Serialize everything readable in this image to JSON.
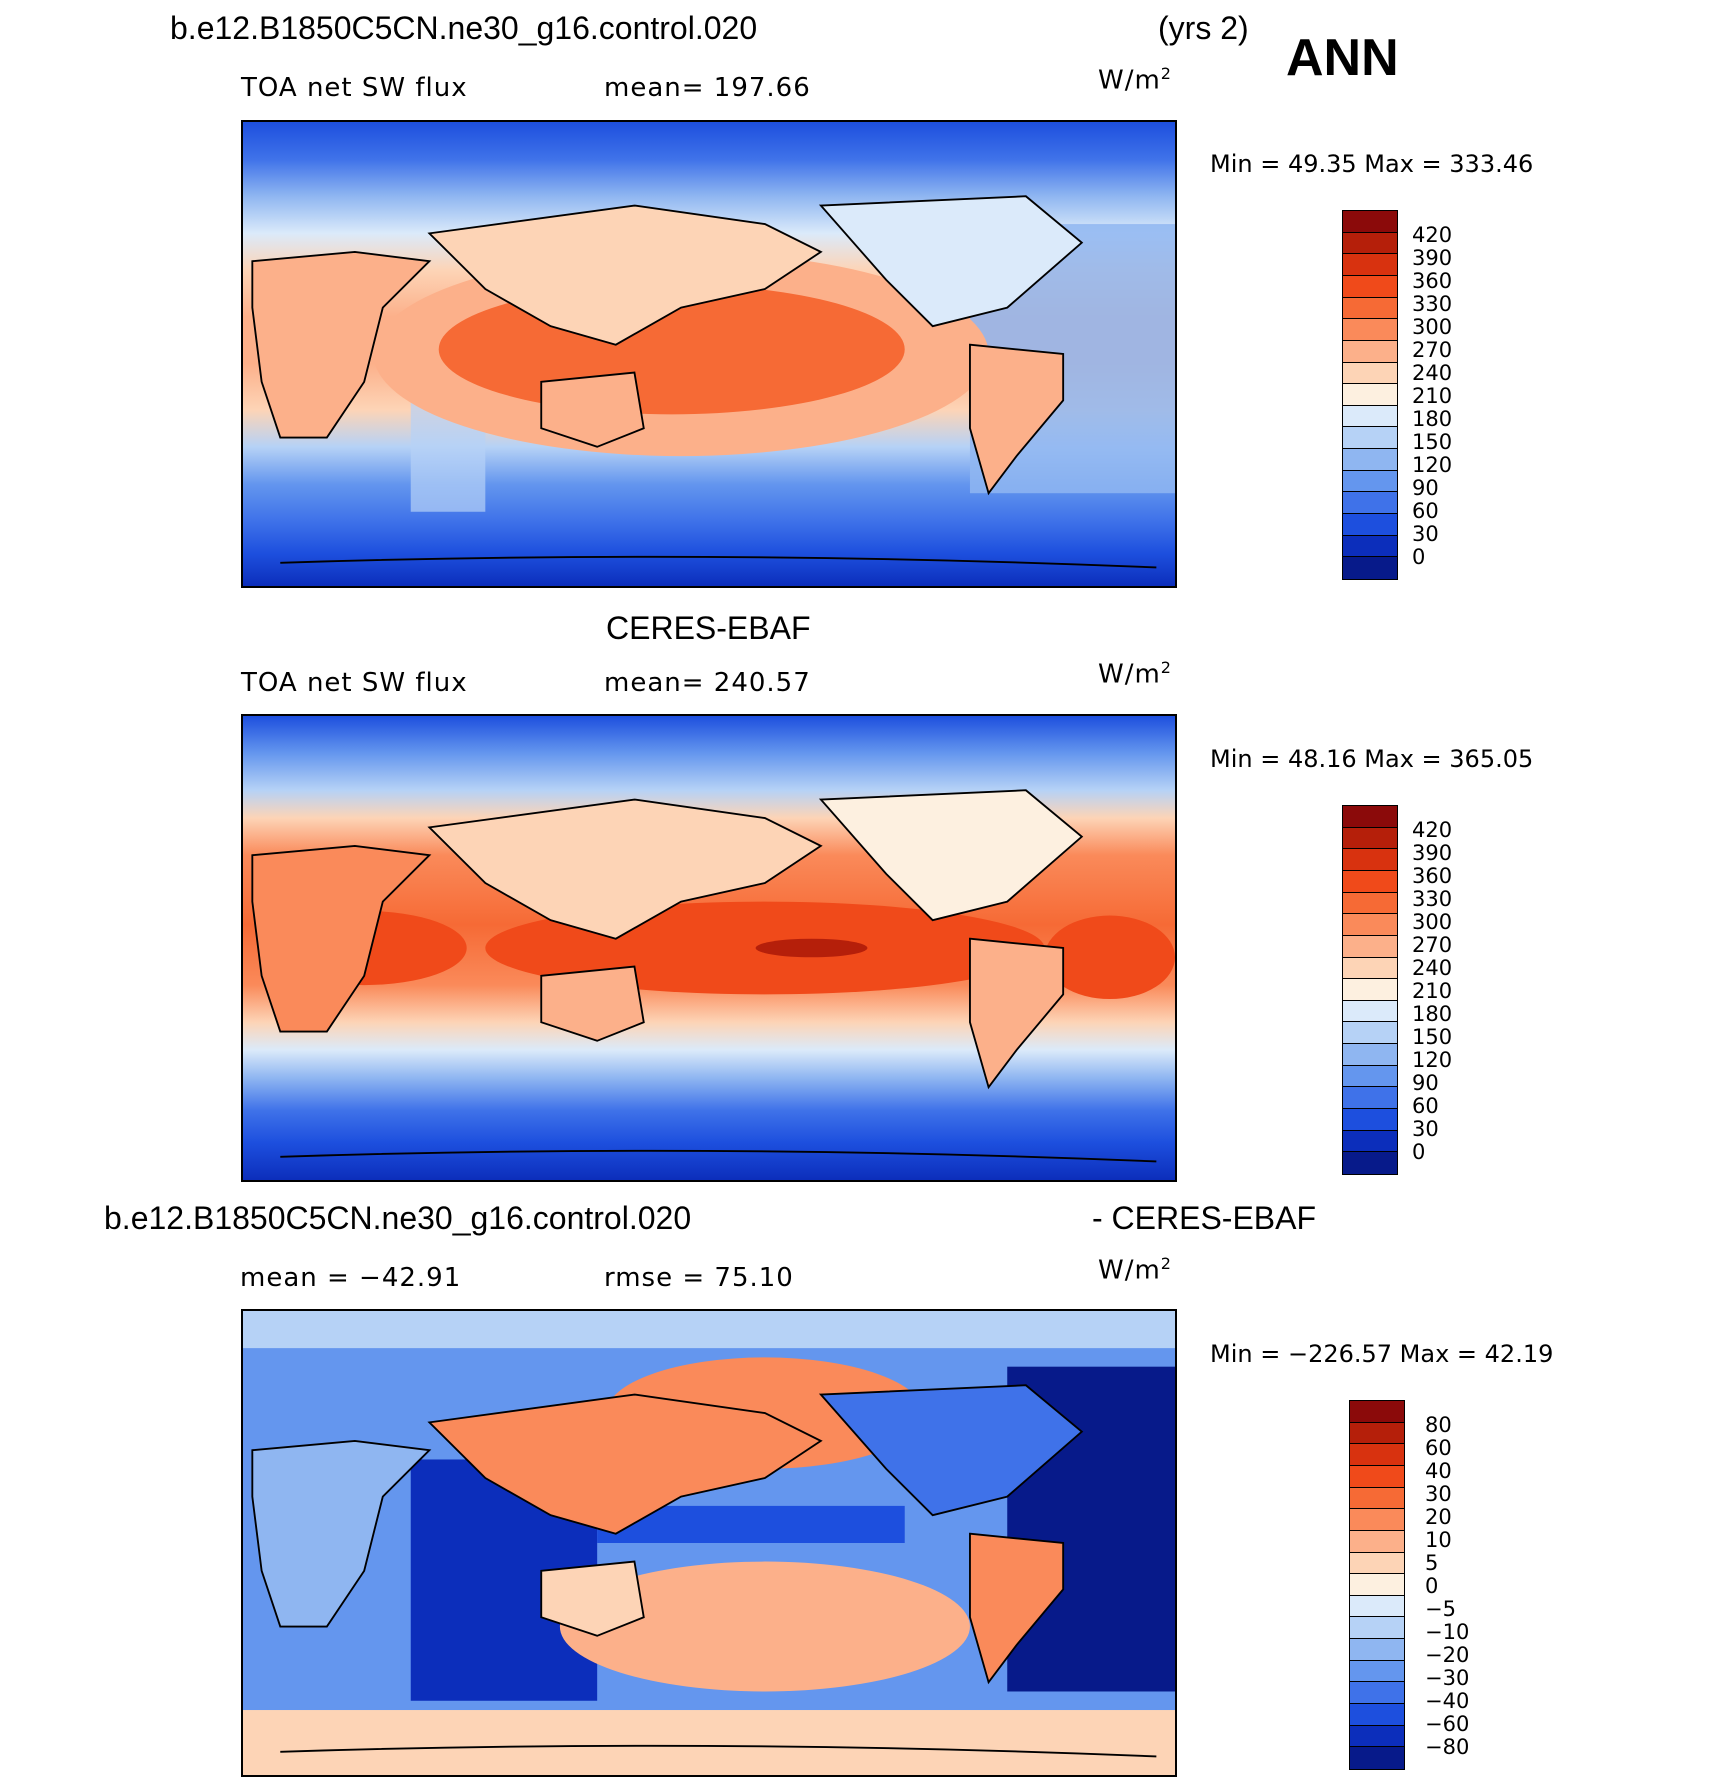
{
  "header": {
    "case_name": "b.e12.B1850C5CN.ne30_g16.control.020",
    "years": "(yrs 2)",
    "season": "ANN"
  },
  "panels": [
    {
      "id": "model",
      "title": "",
      "variable": "TOA net SW flux",
      "stat_label": "mean= 197.66",
      "units": "W/m",
      "units_sup": "2",
      "min_max": "Min =   49.35  Max =  333.46",
      "min": 49.35,
      "max": 333.46,
      "mean": 197.66
    },
    {
      "id": "obs",
      "title": "CERES-EBAF",
      "variable": "TOA net SW flux",
      "stat_label": "mean= 240.57",
      "units": "W/m",
      "units_sup": "2",
      "min_max": "Min =   48.16  Max =  365.05",
      "min": 48.16,
      "max": 365.05,
      "mean": 240.57
    },
    {
      "id": "diff",
      "title_left": "b.e12.B1850C5CN.ne30_g16.control.020",
      "title_right": "- CERES-EBAF",
      "stat_label": "mean = −42.91",
      "stat_label2": "rmse =   75.10",
      "units": "W/m",
      "units_sup": "2",
      "min_max": "Min = −226.57  Max =   42.19",
      "min": -226.57,
      "max": 42.19,
      "mean": -42.91,
      "rmse": 75.1
    }
  ],
  "colorbars": {
    "abs": {
      "labels": [
        "420",
        "390",
        "360",
        "330",
        "300",
        "270",
        "240",
        "210",
        "180",
        "150",
        "120",
        "90",
        "60",
        "30",
        "0"
      ],
      "colors": [
        "#8b0a0a",
        "#b51f0a",
        "#d8320f",
        "#f04a1a",
        "#f66a35",
        "#fa8a5a",
        "#fcb08a",
        "#fdd4b6",
        "#fdf0e0",
        "#dbeafa",
        "#b6d2f6",
        "#8fb6f1",
        "#6496ee",
        "#3f72e9",
        "#1d4fde",
        "#0c2ebb",
        "#071a8a"
      ]
    },
    "diff": {
      "labels": [
        "80",
        "60",
        "40",
        "30",
        "20",
        "10",
        "5",
        "0",
        "−5",
        "−10",
        "−20",
        "−30",
        "−40",
        "−60",
        "−80"
      ],
      "colors": [
        "#8b0a0a",
        "#b51f0a",
        "#d8320f",
        "#f04a1a",
        "#f66a35",
        "#fa8a5a",
        "#fcb08a",
        "#fdd4b6",
        "#fdf0e0",
        "#dbeafa",
        "#b6d2f6",
        "#8fb6f1",
        "#6496ee",
        "#3f72e9",
        "#1d4fde",
        "#0c2ebb",
        "#071a8a"
      ]
    }
  }
}
